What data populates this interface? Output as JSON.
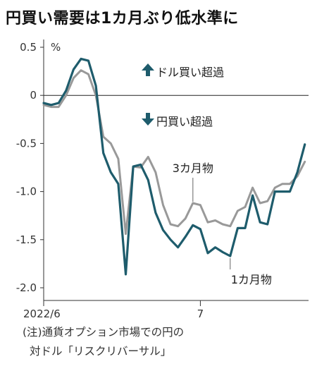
{
  "title": "円買い需要は1カ月ぶり低水準に",
  "unit": "%",
  "note_lines": [
    "(注)通貨オプション市場での円の",
    "対ドル「リスクリバーサル」"
  ],
  "chart_data": {
    "type": "line",
    "title": "円買い需要は1カ月ぶり低水準に",
    "ylabel": "%",
    "ylim": [
      -2.0,
      0.5
    ],
    "yticks": [
      0.5,
      0,
      -0.5,
      -1.0,
      -1.5,
      -2.0
    ],
    "ytick_labels": [
      "0.5",
      "0",
      "-0.5",
      "-1.0",
      "-1.5",
      "-2.0"
    ],
    "xlim": [
      0,
      35.5
    ],
    "xticks": [
      {
        "x": 0,
        "label": "2022/6"
      },
      {
        "x": 21,
        "label": "7"
      }
    ],
    "annotations": [
      {
        "text": "ドル買い超過",
        "arrow": "up",
        "color": "#1e5c6c"
      },
      {
        "text": "円買い超過",
        "arrow": "down",
        "color": "#1e5c6c"
      }
    ],
    "series": [
      {
        "name": "1カ月物",
        "color": "#1e5c6c",
        "x": [
          0,
          1,
          2,
          3,
          4,
          5,
          6,
          7,
          8,
          9,
          10,
          11,
          12,
          13,
          14,
          15,
          16,
          17,
          18,
          19,
          20,
          21,
          22,
          23,
          24,
          25,
          26,
          27,
          28,
          29,
          30,
          31,
          32,
          33,
          34,
          35
        ],
        "values": [
          -0.08,
          -0.1,
          -0.08,
          0.05,
          0.27,
          0.38,
          0.36,
          0.1,
          -0.6,
          -0.8,
          -0.92,
          -1.86,
          -0.74,
          -0.72,
          -0.88,
          -1.22,
          -1.4,
          -1.5,
          -1.58,
          -1.47,
          -1.35,
          -1.39,
          -1.64,
          -1.58,
          -1.63,
          -1.67,
          -1.38,
          -1.38,
          -1.04,
          -1.32,
          -1.34,
          -1.0,
          -1.0,
          -1.0,
          -0.8,
          -0.51
        ]
      },
      {
        "name": "3カ月物",
        "color": "#999999",
        "x": [
          0,
          1,
          2,
          3,
          4,
          5,
          6,
          7,
          8,
          9,
          10,
          11,
          12,
          13,
          14,
          15,
          16,
          17,
          18,
          19,
          20,
          21,
          22,
          23,
          24,
          25,
          26,
          27,
          28,
          29,
          30,
          31,
          32,
          33,
          34,
          35
        ],
        "values": [
          -0.1,
          -0.12,
          -0.12,
          0.0,
          0.18,
          0.26,
          0.22,
          0.0,
          -0.43,
          -0.5,
          -0.66,
          -1.44,
          -0.74,
          -0.75,
          -0.64,
          -0.8,
          -1.14,
          -1.34,
          -1.36,
          -1.28,
          -1.12,
          -1.14,
          -1.32,
          -1.3,
          -1.34,
          -1.36,
          -1.2,
          -1.16,
          -0.96,
          -1.12,
          -1.1,
          -0.96,
          -0.92,
          -0.92,
          -0.84,
          -0.69
        ]
      }
    ]
  }
}
